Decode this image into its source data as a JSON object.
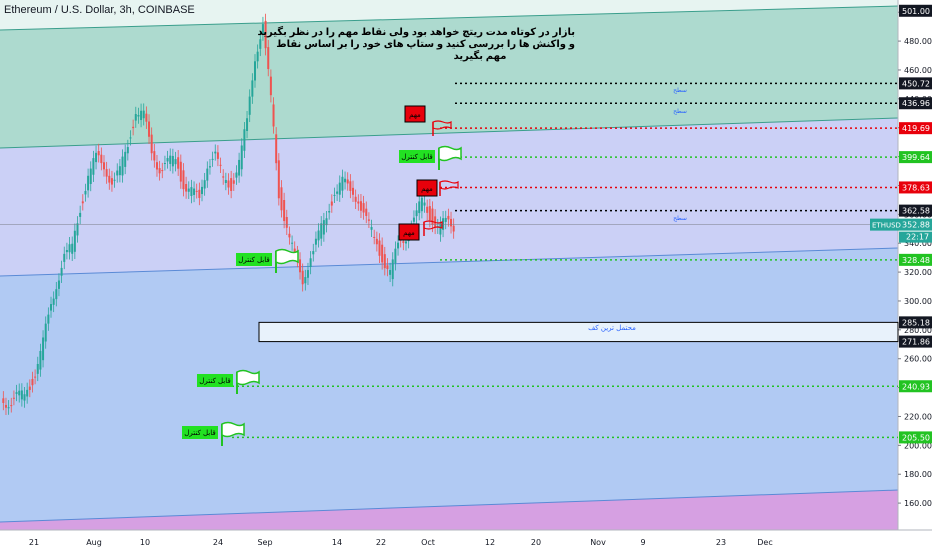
{
  "chart_data": {
    "type": "line",
    "title": "Ethereum / U.S. Dollar, 3h, COINBASE",
    "xlabel": "",
    "ylabel": "",
    "x_ticks": [
      "21",
      "Aug",
      "10",
      "24",
      "Sep",
      "14",
      "22",
      "Oct",
      "12",
      "20",
      "Nov",
      "9",
      "23",
      "Dec"
    ],
    "y_ticks": [
      160,
      180,
      200,
      220,
      240,
      260,
      280,
      300,
      320,
      340,
      360,
      380,
      400,
      420,
      440,
      460,
      480,
      500
    ],
    "ylim": [
      145,
      505
    ],
    "series": [
      {
        "values": [
          232,
          229,
          233,
          236,
          245,
          262,
          290,
          312,
          330,
          338,
          365,
          385,
          400,
          395,
          380,
          390,
          410,
          430,
          428,
          405,
          390,
          395,
          400,
          380,
          375,
          372,
          395,
          400,
          385,
          380,
          395,
          425,
          470,
          490,
          440,
          375,
          350,
          330,
          315,
          330,
          345,
          360,
          375,
          382,
          378,
          370,
          355,
          345,
          330,
          318,
          340,
          345,
          355,
          370,
          360,
          350,
          355,
          352
        ]
      }
    ],
    "current_price": {
      "label": "ETHUSD",
      "value": "352.88",
      "countdown": "22:17"
    },
    "price_labels": [
      "501.00",
      "450.72",
      "436.96",
      "419.69",
      "399.64",
      "378.63",
      "362.58",
      "352.88",
      "328.48",
      "285.18",
      "271.86",
      "240.93",
      "205.50"
    ],
    "levels": [
      {
        "price": 450.72,
        "style": "dotted",
        "color": "#000000"
      },
      {
        "price": 436.96,
        "style": "dotted",
        "color": "#000000"
      },
      {
        "price": 419.69,
        "style": "dotted",
        "color": "#e8000b"
      },
      {
        "price": 399.64,
        "style": "dotted",
        "color": "#22c322"
      },
      {
        "price": 378.63,
        "style": "dotted",
        "color": "#e8000b"
      },
      {
        "price": 362.58,
        "style": "dotted",
        "color": "#000000"
      },
      {
        "price": 328.48,
        "style": "dotted",
        "color": "#22c322"
      },
      {
        "price": 240.93,
        "style": "dotted",
        "color": "#22c322"
      },
      {
        "price": 205.5,
        "style": "dotted",
        "color": "#22c322"
      }
    ],
    "zone": {
      "top": 285.18,
      "bottom": 271.86,
      "label": "محتمل ترین کف"
    },
    "annotations": [
      {
        "text": "مهم",
        "color": "red-box"
      },
      {
        "text": "مهم",
        "color": "red-box"
      },
      {
        "text": "مهم",
        "color": "red-box"
      },
      {
        "text": "قابل کنترل",
        "color": "green-box"
      },
      {
        "text": "قابل کنترل",
        "color": "green-box"
      },
      {
        "text": "قابل کنترل",
        "color": "green-box"
      },
      {
        "text": "قابل کنترل",
        "color": "green-box"
      },
      {
        "text": "سطح",
        "color": "blue-text"
      },
      {
        "text": "سطح",
        "color": "blue-text"
      },
      {
        "text": "سطح",
        "color": "blue-text"
      }
    ],
    "note": [
      "بازار در کوتاه مدت ریتچ خواهد بود ولی نقاط مهم را در نظر بگیرید",
      "و واکنش ها را بررسی کنید و ستاپ های خود را بر اساس نقاط",
      "مهم بگیرید"
    ],
    "colors": {
      "up": "#26a69a",
      "down": "#ef5350",
      "channel_top": "#9fd3c7",
      "channel_mid": "#c5cbf5",
      "channel_low": "#a9c4f2",
      "channel_bottom": "#d49be0"
    },
    "grid": true
  }
}
